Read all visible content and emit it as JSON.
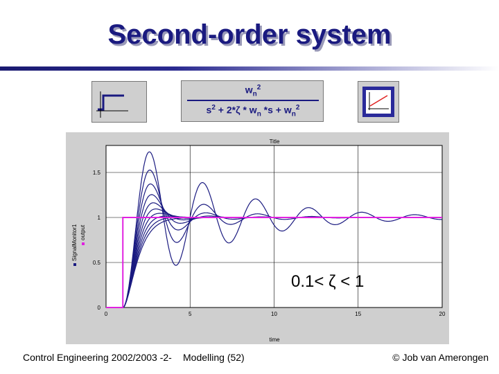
{
  "slide": {
    "title": "Second-order system",
    "footer_left": "Control Engineering 2002/2003 -2-",
    "footer_mid": "Modelling  (52)",
    "footer_right": "© Job van Amerongen"
  },
  "transfer_function": {
    "num_base": "w",
    "num_sub": "n",
    "num_sup": "2",
    "den_s": "s",
    "den_s_sup": "2",
    "den_mid": " + 2*",
    "den_zeta": "ζ",
    "den_mid2": " * w",
    "den_sub1": "n",
    "den_mid3": " *s + w",
    "den_sub2": "n",
    "den_sup2": "2"
  },
  "colors": {
    "title": "#1a1a80",
    "curves": "#1a1a80",
    "step": "#e020e0"
  },
  "chart_data": {
    "type": "line",
    "title": "Title",
    "xlabel": "time",
    "ylabel": "",
    "xlim": [
      0,
      20
    ],
    "ylim": [
      0,
      1.8
    ],
    "x_ticks": [
      "0",
      "5",
      "10",
      "15",
      "20"
    ],
    "y_ticks": [
      "0",
      "0.5",
      "1",
      "1.5"
    ],
    "grid": true,
    "legend": [
      "SignalMonitor1",
      "output"
    ],
    "legend_placement": "left-vertical",
    "annotation": "0.1< ζ < 1",
    "step_input": {
      "time": 1,
      "amplitude": 1
    },
    "natural_frequency": 2,
    "zetas": [
      0.1,
      0.2,
      0.3,
      0.4,
      0.5,
      0.6,
      0.7,
      0.8,
      0.9,
      1.0
    ]
  }
}
